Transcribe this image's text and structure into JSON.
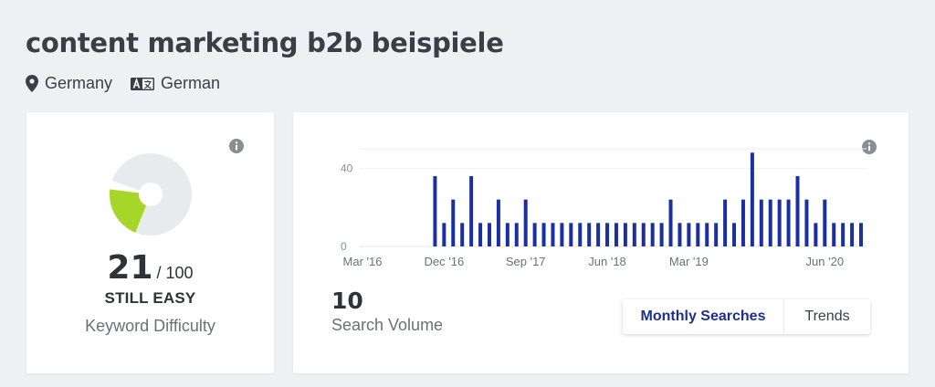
{
  "header": {
    "title": "content marketing b2b beispiele",
    "location": "Germany",
    "language": "German",
    "location_icon": "map-pin-icon",
    "language_icon": "translate-icon"
  },
  "difficulty": {
    "value": "21",
    "max": "/ 100",
    "rating": "STILL EASY",
    "caption": "Keyword Difficulty",
    "fill_fraction": 0.21,
    "fill_color": "#a6d62a",
    "track_color": "#e8ebee",
    "info_icon": "info-icon"
  },
  "volume": {
    "value": "10",
    "caption": "Search Volume",
    "info_icon": "info-icon",
    "tabs": [
      {
        "label": "Monthly Searches",
        "active": true
      },
      {
        "label": "Trends",
        "active": false
      }
    ]
  },
  "chart_data": {
    "type": "bar",
    "color": "#1a2fa0",
    "y_ticks": [
      "0",
      "40"
    ],
    "ylim": [
      0,
      50
    ],
    "x_ticks": [
      "Mar '16",
      "Dec '16",
      "Sep '17",
      "Jun '18",
      "Mar '19",
      "Jun '20"
    ],
    "x_tick_index": [
      0,
      9,
      18,
      27,
      36,
      51
    ],
    "values": [
      0,
      0,
      0,
      0,
      0,
      0,
      0,
      0,
      36,
      12,
      24,
      12,
      36,
      12,
      12,
      24,
      12,
      12,
      24,
      12,
      12,
      12,
      12,
      12,
      12,
      12,
      12,
      12,
      12,
      12,
      12,
      12,
      12,
      12,
      24,
      12,
      12,
      12,
      12,
      12,
      24,
      12,
      24,
      48,
      24,
      24,
      24,
      24,
      36,
      24,
      12,
      24,
      12,
      12,
      12,
      12
    ]
  }
}
